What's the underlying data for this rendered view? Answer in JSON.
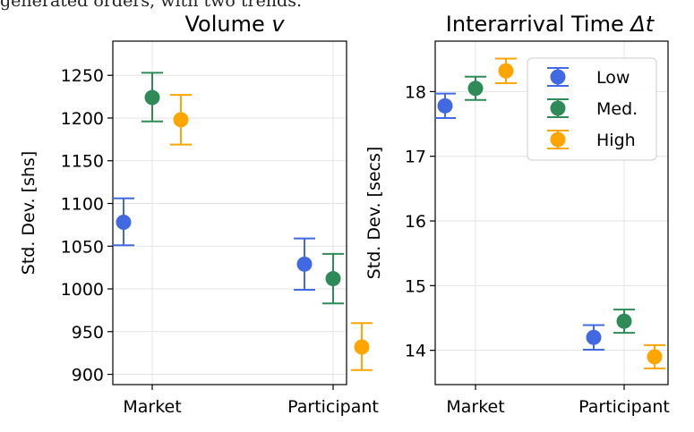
{
  "caption": "generated orders, with two trends.",
  "chart_data": [
    {
      "type": "scatter",
      "title": "Volume v",
      "title_plain": "Volume ",
      "title_var": "v",
      "ylabel": "Std. Dev. [shs]",
      "categories": [
        "Market",
        "Participant"
      ],
      "ylim": [
        888,
        1290
      ],
      "yticks": [
        900,
        950,
        1000,
        1050,
        1100,
        1150,
        1200,
        1250
      ],
      "grid": true,
      "series": [
        {
          "name": "Low",
          "color": "#4169e1",
          "values": [
            1078,
            1029
          ],
          "err_low": [
            1051,
            999
          ],
          "err_high": [
            1106,
            1059
          ]
        },
        {
          "name": "Med.",
          "color": "#2e8b57",
          "values": [
            1224,
            1012
          ],
          "err_low": [
            1196,
            983
          ],
          "err_high": [
            1253,
            1041
          ]
        },
        {
          "name": "High",
          "color": "#ffa500",
          "values": [
            1198,
            932
          ],
          "err_low": [
            1169,
            905
          ],
          "err_high": [
            1227,
            960
          ]
        }
      ]
    },
    {
      "type": "scatter",
      "title": "Interarrival Time Δt",
      "title_plain": "Interarrival Time ",
      "title_var": "Δt",
      "ylabel": "Std. Dev. [secs]",
      "categories": [
        "Market",
        "Participant"
      ],
      "ylim": [
        13.47,
        18.78
      ],
      "yticks": [
        14,
        15,
        16,
        17,
        18
      ],
      "grid": true,
      "legend_position": "upper right",
      "series": [
        {
          "name": "Low",
          "color": "#4169e1",
          "values": [
            17.78,
            14.2
          ],
          "err_low": [
            17.59,
            14.01
          ],
          "err_high": [
            17.97,
            14.39
          ]
        },
        {
          "name": "Med.",
          "color": "#2e8b57",
          "values": [
            18.05,
            14.45
          ],
          "err_low": [
            17.87,
            14.27
          ],
          "err_high": [
            18.23,
            14.63
          ]
        },
        {
          "name": "High",
          "color": "#ffa500",
          "values": [
            18.32,
            13.9
          ],
          "err_low": [
            18.13,
            13.72
          ],
          "err_high": [
            18.51,
            14.08
          ]
        }
      ]
    }
  ]
}
